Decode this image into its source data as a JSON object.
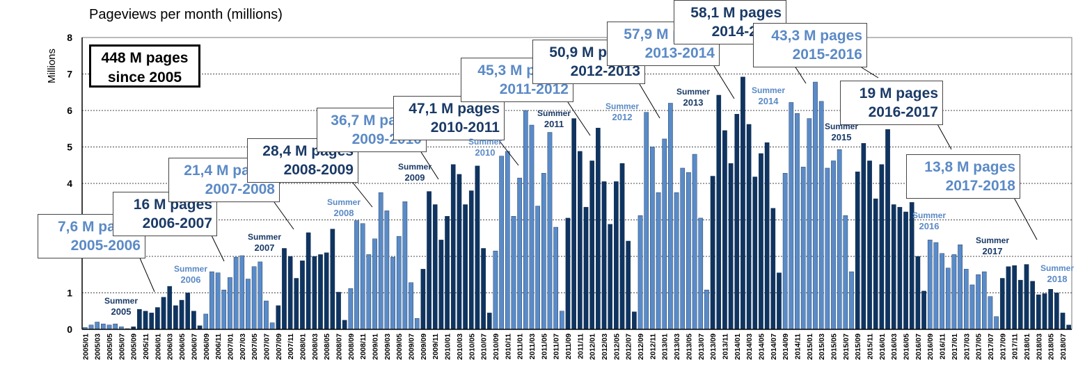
{
  "title": "Pageviews per month (millions)",
  "ylabel": "Millions",
  "total": {
    "line1": "448 M pages",
    "line2": "since 2005"
  },
  "colors": {
    "dark": "#0f3461",
    "light": "#5a8bc9",
    "dark_text": "#1a3a66",
    "light_text": "#5b8ac6"
  },
  "callouts": [
    {
      "pages": "7,6 M pages",
      "season": "2005-2006",
      "tone": "light"
    },
    {
      "pages": "16 M pages",
      "season": "2006-2007",
      "tone": "dark"
    },
    {
      "pages": "21,4 M pages",
      "season": "2007-2008",
      "tone": "light"
    },
    {
      "pages": "28,4 M pages",
      "season": "2008-2009",
      "tone": "dark"
    },
    {
      "pages": "36,7 M pages",
      "season": "2009-2010",
      "tone": "light"
    },
    {
      "pages": "47,1 M pages",
      "season": "2010-2011",
      "tone": "dark"
    },
    {
      "pages": "45,3 M pages",
      "season": "2011-2012",
      "tone": "light"
    },
    {
      "pages": "50,9 M pages",
      "season": "2012-2013",
      "tone": "dark"
    },
    {
      "pages": "57,9 M pages",
      "season": "2013-2014",
      "tone": "light"
    },
    {
      "pages": "58,1 M pages",
      "season": "2014-2015",
      "tone": "dark"
    },
    {
      "pages": "43,3 M pages",
      "season": "2015-2016",
      "tone": "light"
    },
    {
      "pages": "19 M pages",
      "season": "2016-2017",
      "tone": "dark"
    },
    {
      "pages": "13,8 M pages",
      "season": "2017-2018",
      "tone": "light"
    }
  ],
  "summers": [
    {
      "label": "Summer",
      "year": "2005",
      "tone": "dark"
    },
    {
      "label": "Summer",
      "year": "2006",
      "tone": "light"
    },
    {
      "label": "Summer",
      "year": "2007",
      "tone": "dark"
    },
    {
      "label": "Summer",
      "year": "2008",
      "tone": "light"
    },
    {
      "label": "Summer",
      "year": "2009",
      "tone": "dark"
    },
    {
      "label": "Summer",
      "year": "2010",
      "tone": "light"
    },
    {
      "label": "Summer",
      "year": "2011",
      "tone": "dark"
    },
    {
      "label": "Summer",
      "year": "2012",
      "tone": "light"
    },
    {
      "label": "Summer",
      "year": "2013",
      "tone": "dark"
    },
    {
      "label": "Summer",
      "year": "2014",
      "tone": "light"
    },
    {
      "label": "Summer",
      "year": "2015",
      "tone": "dark"
    },
    {
      "label": "Summer",
      "year": "2016",
      "tone": "light"
    },
    {
      "label": "Summer",
      "year": "2017",
      "tone": "dark"
    },
    {
      "label": "Summer",
      "year": "2018",
      "tone": "light"
    }
  ],
  "chart_data": {
    "type": "bar",
    "title": "Pageviews per month (millions)",
    "ylabel": "Millions",
    "ylim": [
      0,
      8
    ],
    "yticks": [
      0,
      1,
      2,
      3,
      4,
      5,
      6,
      7,
      8
    ],
    "ytick_labels": [
      "0",
      "1",
      "",
      "",
      "4",
      "5",
      "6",
      "7",
      "8"
    ],
    "grid": true,
    "start": "2005/01",
    "values": [
      0.05,
      0.12,
      0.2,
      0.15,
      0.12,
      0.15,
      0.07,
      0.02,
      0.07,
      0.55,
      0.5,
      0.45,
      0.6,
      0.88,
      1.18,
      0.65,
      0.8,
      1.0,
      0.5,
      0.1,
      0.42,
      1.58,
      1.55,
      1.08,
      1.42,
      1.98,
      2.02,
      1.38,
      1.72,
      1.85,
      0.78,
      0.18,
      0.65,
      2.22,
      2.0,
      1.4,
      1.88,
      2.65,
      2.0,
      2.05,
      2.1,
      2.75,
      1.02,
      0.25,
      1.12,
      2.98,
      2.9,
      2.05,
      2.48,
      3.75,
      3.25,
      1.98,
      2.55,
      3.5,
      1.28,
      0.3,
      1.65,
      3.78,
      3.42,
      2.45,
      3.1,
      4.52,
      4.25,
      3.42,
      3.8,
      4.48,
      2.22,
      0.45,
      2.15,
      4.75,
      4.88,
      3.1,
      4.15,
      6.0,
      5.6,
      3.38,
      4.28,
      5.4,
      2.8,
      0.5,
      3.05,
      5.78,
      4.88,
      3.35,
      4.62,
      5.52,
      4.05,
      2.88,
      4.05,
      4.55,
      2.42,
      0.48,
      3.12,
      5.95,
      5.0,
      3.75,
      5.22,
      6.2,
      3.75,
      4.42,
      4.3,
      4.8,
      3.05,
      1.08,
      4.2,
      6.42,
      5.45,
      4.55,
      5.9,
      6.92,
      5.62,
      4.18,
      4.82,
      5.12,
      3.32,
      1.55,
      4.28,
      6.22,
      5.92,
      4.45,
      5.78,
      6.78,
      6.25,
      4.42,
      4.62,
      4.93,
      3.12,
      1.58,
      4.32,
      5.1,
      4.62,
      3.58,
      4.52,
      5.48,
      3.42,
      3.35,
      3.22,
      3.48,
      2.0,
      1.05,
      2.45,
      2.38,
      2.08,
      1.68,
      2.05,
      2.32,
      1.65,
      1.22,
      1.5,
      1.58,
      0.9,
      0.35,
      1.4,
      1.72,
      1.75,
      1.35,
      1.78,
      1.32,
      0.95,
      0.98,
      1.1,
      1.0,
      0.45,
      0.12
    ],
    "x_tick_labels": [
      "2005/01",
      "2005/03",
      "2005/05",
      "2005/07",
      "2005/09",
      "2005/11",
      "2006/01",
      "2006/03",
      "2006/05",
      "2006/07",
      "2006/09",
      "2006/11",
      "2007/01",
      "2007/03",
      "2007/05",
      "2007/07",
      "2007/09",
      "2007/11",
      "2008/01",
      "2008/03",
      "2008/05",
      "2008/07",
      "2008/09",
      "2008/11",
      "2009/01",
      "2009/03",
      "2009/05",
      "2009/07",
      "2009/09",
      "2009/11",
      "2010/01",
      "2010/03",
      "2010/05",
      "2010/07",
      "2010/09",
      "2010/11",
      "2011/01",
      "2011/03",
      "2011/05",
      "2011/07",
      "2011/09",
      "2011/11",
      "2012/01",
      "2012/03",
      "2012/05",
      "2012/07",
      "2012/09",
      "2012/11",
      "2013/01",
      "2013/03",
      "2013/05",
      "2013/07",
      "2013/09",
      "2013/11",
      "2014/01",
      "2014/03",
      "2014/05",
      "2014/07",
      "2014/09",
      "2014/11",
      "2015/01",
      "2015/03",
      "2015/05",
      "2015/07",
      "2015/09",
      "2015/11",
      "2016/01",
      "2016/03",
      "2016/05",
      "2016/07",
      "2016/09",
      "2016/11",
      "2017/01",
      "2017/03",
      "2017/05",
      "2017/07",
      "2017/09",
      "2017/11",
      "2018/01",
      "2018/03",
      "2018/05",
      "2018/07"
    ]
  }
}
